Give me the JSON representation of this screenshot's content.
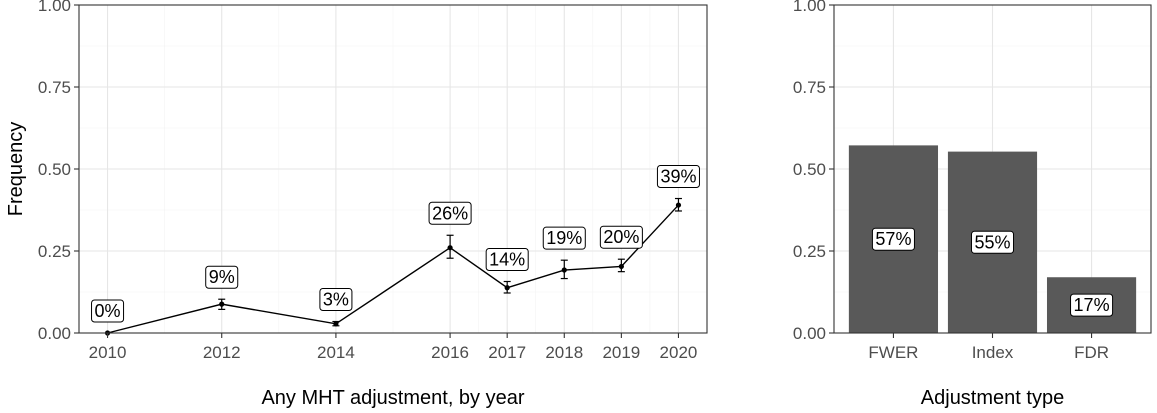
{
  "chart_data": [
    {
      "type": "line",
      "xlabel": "Any MHT adjustment, by year",
      "ylabel": "Frequency",
      "ylim": [
        0,
        1
      ],
      "yticks": [
        "0.00",
        "0.25",
        "0.50",
        "0.75",
        "1.00"
      ],
      "x": [
        2010,
        2012,
        2014,
        2016,
        2017,
        2018,
        2019,
        2020
      ],
      "x_tick_labels": [
        "2010",
        "2012",
        "2014",
        "2016",
        "2017",
        "2018",
        "2019",
        "2020"
      ],
      "values": [
        0.0,
        0.088,
        0.028,
        0.26,
        0.138,
        0.192,
        0.203,
        0.39
      ],
      "error_low": [
        0.0,
        0.072,
        0.022,
        0.228,
        0.122,
        0.166,
        0.187,
        0.372
      ],
      "error_high": [
        0.0,
        0.103,
        0.035,
        0.298,
        0.157,
        0.222,
        0.225,
        0.41
      ],
      "data_labels": [
        "0%",
        "9%",
        "3%",
        "26%",
        "14%",
        "19%",
        "20%",
        "39%"
      ],
      "grid": true,
      "color": "#000000"
    },
    {
      "type": "bar",
      "xlabel": "Adjustment type",
      "ylabel": "",
      "ylim": [
        0,
        1
      ],
      "yticks": [
        "0.00",
        "0.25",
        "0.50",
        "0.75",
        "1.00"
      ],
      "categories": [
        "FWER",
        "Index",
        "FDR"
      ],
      "values": [
        0.572,
        0.553,
        0.17
      ],
      "data_labels": [
        "57%",
        "55%",
        "17%"
      ],
      "grid": true,
      "bar_color": "#595959"
    }
  ]
}
